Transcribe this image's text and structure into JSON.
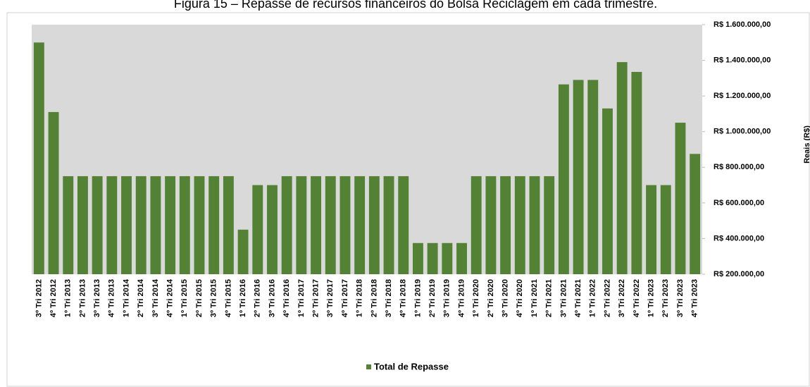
{
  "chart_data": {
    "type": "bar",
    "title": "Figura 15 – Repasse de recursos financeiros do Bolsa Reciclagem em cada trimestre.",
    "y_label": "Reais (R$)",
    "categories": [
      "3º Tri 2012",
      "4º Tri 2012",
      "1º Tri 2013",
      "2º Tri 2013",
      "3º Tri 2013",
      "4º Tri 2013",
      "1º Tri 2014",
      "2º Tri 2014",
      "3º Tri 2014",
      "4º Tri 2014",
      "1º Tri 2015",
      "2º Tri 2015",
      "3º Tri 2015",
      "4º Tri 2015",
      "1º Tri 2016",
      "2º Tri 2016",
      "3º Tri 2016",
      "4º Tri 2016",
      "1º Tri 2017",
      "2º Tri 2017",
      "3º Tri 2017",
      "4º Tri 2017",
      "1º Tri 2018",
      "2º Tri 2018",
      "3º Tri 2018",
      "4º Tri 2018",
      "1º Tri 2019",
      "2º Tri 2019",
      "3º Tri 2019",
      "4º Tri 2019",
      "1º Tri 2020",
      "2º Tri 2020",
      "3º Tri 2020",
      "4º Tri 2020",
      "1º Tri 2021",
      "2º Tri 2021",
      "3º Tri 2021",
      "4º Tri 2021",
      "1º Tri 2022",
      "2º Tri 2022",
      "3º Tri 2022",
      "4º Tri 2022",
      "1º Tri 2023",
      "2º Tri 2023",
      "3º Tri 2023",
      "4º Tri 2023"
    ],
    "series": [
      {
        "name": "Total de Repasse",
        "color": "#548235",
        "values": [
          1500000,
          1110000,
          750000,
          750000,
          750000,
          750000,
          750000,
          750000,
          750000,
          750000,
          750000,
          750000,
          750000,
          750000,
          450000,
          700000,
          700000,
          750000,
          750000,
          750000,
          750000,
          750000,
          750000,
          750000,
          750000,
          750000,
          375000,
          375000,
          375000,
          375000,
          750000,
          750000,
          750000,
          750000,
          750000,
          750000,
          1265000,
          1290000,
          1290000,
          1130000,
          1390000,
          1335000,
          700000,
          700000,
          1050000,
          875000
        ]
      }
    ],
    "ylim": [
      200000,
      1600000
    ],
    "yticks": [
      {
        "value": 200000,
        "label": "R$ 200.000,00"
      },
      {
        "value": 400000,
        "label": "R$ 400.000,00"
      },
      {
        "value": 600000,
        "label": "R$ 600.000,00"
      },
      {
        "value": 800000,
        "label": "R$ 800.000,00"
      },
      {
        "value": 1000000,
        "label": "R$ 1.000.000,00"
      },
      {
        "value": 1200000,
        "label": "R$ 1.200.000,00"
      },
      {
        "value": 1400000,
        "label": "R$ 1.400.000,00"
      },
      {
        "value": 1600000,
        "label": "R$ 1.600.000,00"
      }
    ],
    "y_axis_side": "right",
    "plot_background": "#d9d9d9",
    "legend": "bottom"
  }
}
